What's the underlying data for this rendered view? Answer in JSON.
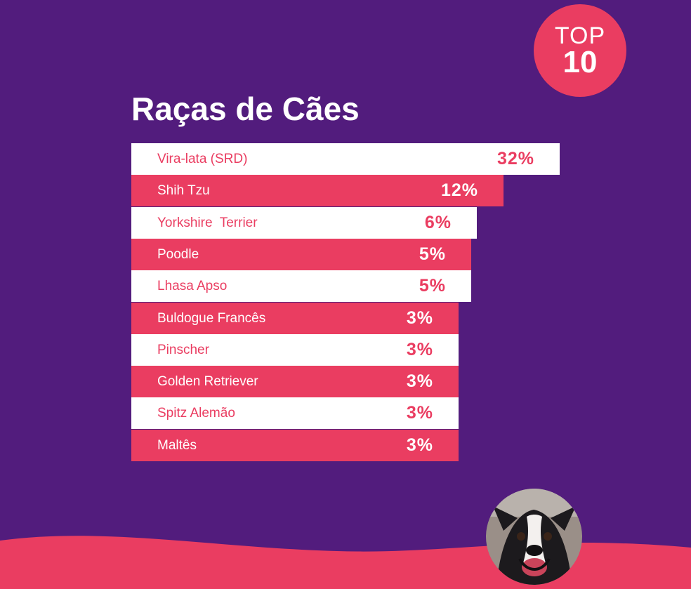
{
  "badge": {
    "top": "TOP",
    "number": "10"
  },
  "colors": {
    "background": "#521c7d",
    "accent": "#ea3d61",
    "light": "#ffffff"
  },
  "chart_data": {
    "type": "bar",
    "orientation": "horizontal",
    "title": "Raças de Cães",
    "categories": [
      "Vira-lata (SRD)",
      "Shih Tzu",
      "Yorkshire  Terrier",
      "Poodle",
      "Lhasa Apso",
      "Buldogue Francês",
      "Pinscher",
      "Golden Retriever",
      "Spitz Alemão",
      "Maltês"
    ],
    "values": [
      32,
      12,
      6,
      5,
      5,
      3,
      3,
      3,
      3,
      3
    ],
    "value_labels": [
      "32%",
      "12%",
      "6%",
      "5%",
      "5%",
      "3%",
      "3%",
      "3%",
      "3%",
      "3%"
    ],
    "bar_colors": [
      "#ffffff",
      "#ea3d61",
      "#ffffff",
      "#ea3d61",
      "#ffffff",
      "#ea3d61",
      "#ffffff",
      "#ea3d61",
      "#ffffff",
      "#ea3d61"
    ],
    "grid": false,
    "legend": "none"
  },
  "image": {
    "dog_icon": "dog-photo-icon"
  }
}
